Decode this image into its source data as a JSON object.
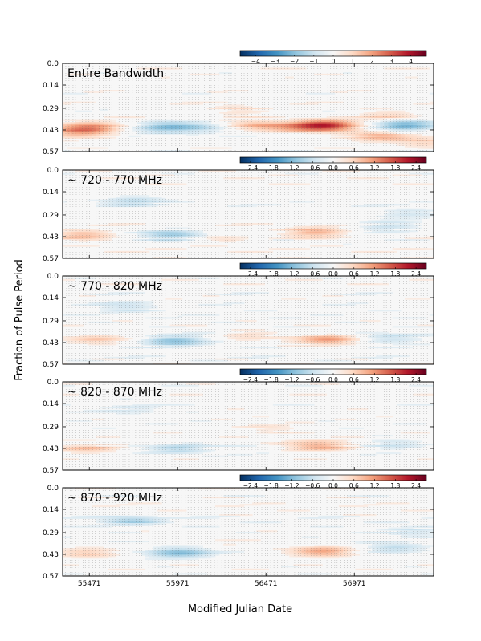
{
  "chart_data": {
    "type": "heatmap",
    "xlabel": "Modified Julian Date",
    "ylabel": "Fraction of Pulse Period",
    "x_ticks": [
      "55471",
      "55971",
      "56471",
      "56971"
    ],
    "y_ticks": [
      "0.0",
      "0.14",
      "0.29",
      "0.43",
      "0.57"
    ],
    "xlim": [
      55320,
      57420
    ],
    "ylim": [
      0.0,
      0.57
    ],
    "colormap": "RdBu_r",
    "colors": {
      "neg": "#053061",
      "mid": "#f7f7f7",
      "pos": "#67001f"
    },
    "panels": [
      {
        "label": "Entire Bandwidth",
        "colorbar_ticks": [
          "−4",
          "−3",
          "−2",
          "−1",
          "0",
          "1",
          "2",
          "3",
          "4"
        ],
        "vmin": -4.8,
        "vmax": 4.8,
        "blobs": [
          {
            "mjd": 55470,
            "phase": 0.41,
            "amp": 2.2
          },
          {
            "mjd": 55400,
            "phase": 0.45,
            "amp": 1.4
          },
          {
            "mjd": 55900,
            "phase": 0.41,
            "amp": -2.0
          },
          {
            "mjd": 56120,
            "phase": 0.42,
            "amp": -1.1
          },
          {
            "mjd": 56400,
            "phase": 0.4,
            "amp": 1.3
          },
          {
            "mjd": 56800,
            "phase": 0.4,
            "amp": 3.8
          },
          {
            "mjd": 56600,
            "phase": 0.42,
            "amp": 0.9
          },
          {
            "mjd": 57120,
            "phase": 0.47,
            "amp": 1.7
          },
          {
            "mjd": 57250,
            "phase": 0.4,
            "amp": -2.6
          },
          {
            "mjd": 57180,
            "phase": 0.34,
            "amp": 1.0
          },
          {
            "mjd": 56300,
            "phase": 0.3,
            "amp": 0.8
          },
          {
            "mjd": 57380,
            "phase": 0.51,
            "amp": 1.0
          }
        ]
      },
      {
        "label": "~ 720 - 770 MHz",
        "colorbar_ticks": [
          "−2.4",
          "−1.8",
          "−1.2",
          "−0.6",
          "0.0",
          "0.6",
          "1.2",
          "1.8",
          "2.4"
        ],
        "vmin": -2.7,
        "vmax": 2.7,
        "blobs": [
          {
            "mjd": 55450,
            "phase": 0.42,
            "amp": 0.8
          },
          {
            "mjd": 55950,
            "phase": 0.42,
            "amp": -1.0
          },
          {
            "mjd": 55720,
            "phase": 0.2,
            "amp": -0.7
          },
          {
            "mjd": 56750,
            "phase": 0.4,
            "amp": 0.9
          },
          {
            "mjd": 57150,
            "phase": 0.36,
            "amp": -0.6
          },
          {
            "mjd": 57280,
            "phase": 0.28,
            "amp": -0.5
          },
          {
            "mjd": 56250,
            "phase": 0.44,
            "amp": 0.4
          }
        ]
      },
      {
        "label": "~ 770 - 820 MHz",
        "colorbar_ticks": [
          "−2.4",
          "−1.8",
          "−1.2",
          "−0.6",
          "0.0",
          "0.6",
          "1.2",
          "1.8",
          "2.4"
        ],
        "vmin": -2.7,
        "vmax": 2.7,
        "blobs": [
          {
            "mjd": 55500,
            "phase": 0.41,
            "amp": 0.7
          },
          {
            "mjd": 55950,
            "phase": 0.42,
            "amp": -1.1
          },
          {
            "mjd": 56820,
            "phase": 0.41,
            "amp": 1.2
          },
          {
            "mjd": 57160,
            "phase": 0.4,
            "amp": -0.7
          },
          {
            "mjd": 55700,
            "phase": 0.2,
            "amp": -0.5
          },
          {
            "mjd": 56350,
            "phase": 0.38,
            "amp": 0.4
          }
        ]
      },
      {
        "label": "~ 820 - 870 MHz",
        "colorbar_ticks": [
          "−2.4",
          "−1.8",
          "−1.2",
          "−0.6",
          "0.0",
          "0.6",
          "1.2",
          "1.8",
          "2.4"
        ],
        "vmin": -2.7,
        "vmax": 2.7,
        "blobs": [
          {
            "mjd": 55480,
            "phase": 0.43,
            "amp": 0.6
          },
          {
            "mjd": 55990,
            "phase": 0.43,
            "amp": -0.9
          },
          {
            "mjd": 56780,
            "phase": 0.41,
            "amp": 0.9
          },
          {
            "mjd": 57220,
            "phase": 0.4,
            "amp": -0.6
          },
          {
            "mjd": 55700,
            "phase": 0.18,
            "amp": -0.4
          },
          {
            "mjd": 56500,
            "phase": 0.3,
            "amp": 0.3
          }
        ]
      },
      {
        "label": "~ 870 - 920 MHz",
        "colorbar_ticks": [
          "−2.4",
          "−1.8",
          "−1.2",
          "−0.6",
          "0.0",
          "0.6",
          "1.2",
          "1.8",
          "2.4"
        ],
        "vmin": -2.7,
        "vmax": 2.7,
        "blobs": [
          {
            "mjd": 55470,
            "phase": 0.42,
            "amp": 0.7
          },
          {
            "mjd": 55980,
            "phase": 0.42,
            "amp": -1.2
          },
          {
            "mjd": 55720,
            "phase": 0.21,
            "amp": -0.8
          },
          {
            "mjd": 56800,
            "phase": 0.41,
            "amp": 1.1
          },
          {
            "mjd": 57200,
            "phase": 0.39,
            "amp": -0.7
          },
          {
            "mjd": 57290,
            "phase": 0.28,
            "amp": -0.5
          },
          {
            "mjd": 56250,
            "phase": 0.35,
            "amp": 0.3
          }
        ]
      }
    ]
  }
}
